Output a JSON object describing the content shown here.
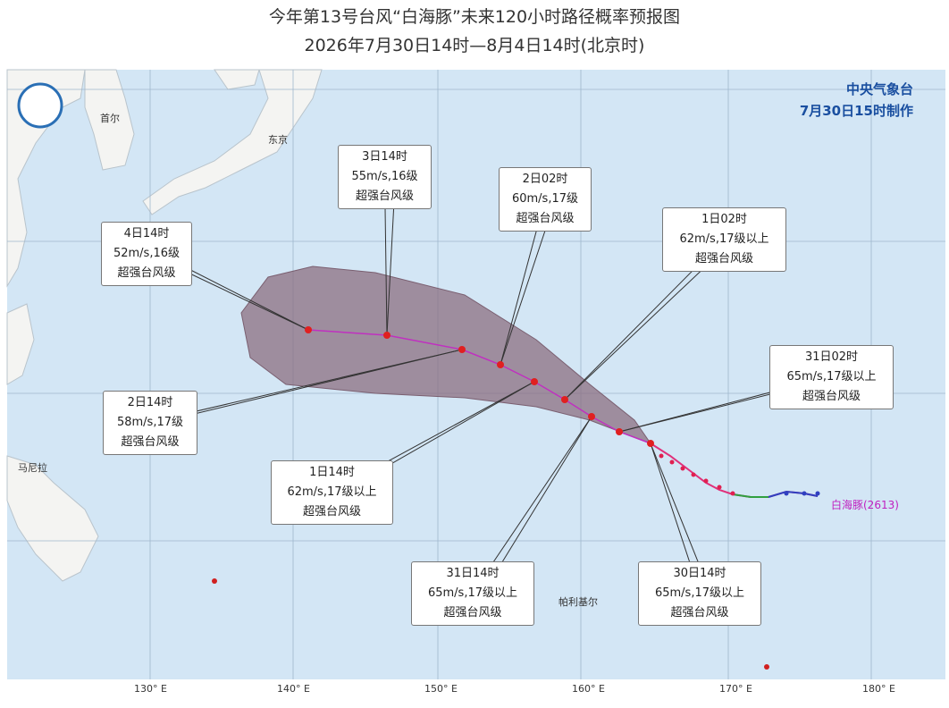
{
  "header": {
    "title": "今年第13号台风“白海豚”未来120小时路径概率预报图",
    "subtitle": "2026年7月30日14时—8月4日14时(北京时)"
  },
  "agency": {
    "name": "中央气象台",
    "issued": "7月30日15时制作"
  },
  "typhoon_label": "白海豚(2613)",
  "callouts": [
    {
      "time": "4日14时",
      "wind": "52m/s,16级",
      "level": "超强台风级"
    },
    {
      "time": "3日14时",
      "wind": "55m/s,16级",
      "level": "超强台风级"
    },
    {
      "time": "2日02时",
      "wind": "60m/s,17级",
      "level": "超强台风级"
    },
    {
      "time": "1日02时",
      "wind": "62m/s,17级以上",
      "level": "超强台风级"
    },
    {
      "time": "31日02时",
      "wind": "65m/s,17级以上",
      "level": "超强台风级"
    },
    {
      "time": "2日14时",
      "wind": "58m/s,17级",
      "level": "超强台风级"
    },
    {
      "time": "1日14时",
      "wind": "62m/s,17级以上",
      "level": "超强台风级"
    },
    {
      "time": "31日14时",
      "wind": "65m/s,17级以上",
      "level": "超强台风级"
    },
    {
      "time": "30日14时",
      "wind": "65m/s,17级以上",
      "level": "超强台风级"
    }
  ],
  "longitudes": [
    "130° E",
    "140° E",
    "150° E",
    "160° E",
    "170° E",
    "180° E"
  ],
  "places": [
    "首尔",
    "东京",
    "马尼拉",
    "帕利基尔"
  ]
}
